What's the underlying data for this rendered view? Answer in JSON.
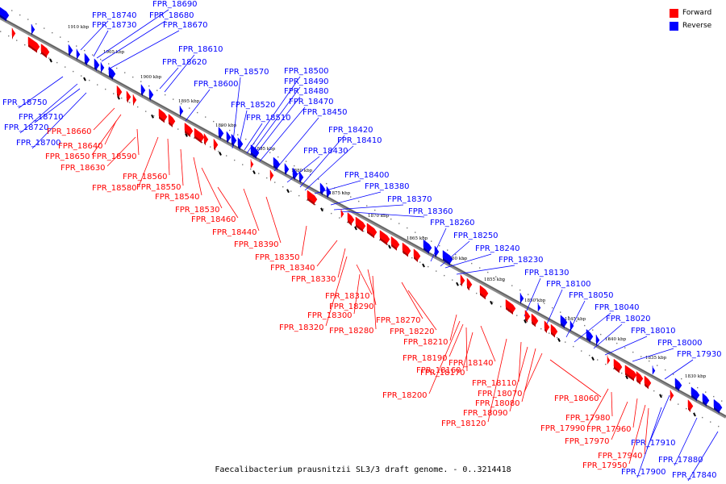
{
  "caption": "Faecalibacterium prausnitzii SL3/3 draft genome. - 0..3214418",
  "legend": {
    "forward_label": "Forward",
    "reverse_label": "Reverse",
    "forward_color": "#ff0000",
    "reverse_color": "#0000ff"
  },
  "scale_labels": [
    "1910 kbp",
    "1905 kbp",
    "1900 kbp",
    "1895 kbp",
    "1890 kbp",
    "1885 kbp",
    "1880 kbp",
    "1875 kbp",
    "1870 kbp",
    "1865 kbp",
    "1860 kbp",
    "1855 kbp",
    "1850 kbp",
    "1845 kbp",
    "1840 kbp",
    "1835 kbp",
    "1830 kbp"
  ],
  "reverse_genes": [
    "FPR_18750",
    "FPR_18740",
    "FPR_18730",
    "FPR_18720",
    "FPR_18710",
    "FPR_18700",
    "FPR_18690",
    "FPR_18680",
    "FPR_18670",
    "FPR_18620",
    "FPR_18610",
    "FPR_18600",
    "FPR_18570",
    "FPR_18520",
    "FPR_18510",
    "FPR_18500",
    "FPR_18490",
    "FPR_18480",
    "FPR_18470",
    "FPR_18450",
    "FPR_18430",
    "FPR_18420",
    "FPR_18410",
    "FPR_18400",
    "FPR_18380",
    "FPR_18370",
    "FPR_18360",
    "FPR_18260",
    "FPR_18250",
    "FPR_18240",
    "FPR_18230",
    "FPR_18130",
    "FPR_18100",
    "FPR_18050",
    "FPR_18040",
    "FPR_18020",
    "FPR_18010",
    "FPR_18000",
    "FPR_17930",
    "FPR_17910",
    "FPR_17900",
    "FPR_17880",
    "FPR_17840"
  ],
  "forward_genes": [
    "FPR_18660",
    "FPR_18650",
    "FPR_18640",
    "FPR_18630",
    "FPR_18590",
    "FPR_18580",
    "FPR_18560",
    "FPR_18550",
    "FPR_18540",
    "FPR_18530",
    "FPR_18460",
    "FPR_18440",
    "FPR_18390",
    "FPR_18350",
    "FPR_18340",
    "FPR_18330",
    "FPR_18320",
    "FPR_18310",
    "FPR_18300",
    "FPR_18290",
    "FPR_18280",
    "FPR_18270",
    "FPR_18220",
    "FPR_18210",
    "FPR_18200",
    "FPR_18190",
    "FPR_18170",
    "FPR_18160",
    "FPR_18140",
    "FPR_18120",
    "FPR_18110",
    "FPR_18090",
    "FPR_18080",
    "FPR_18070",
    "FPR_18060",
    "FPR_17990",
    "FPR_17980",
    "FPR_17970",
    "FPR_17960",
    "FPR_17950",
    "FPR_17940"
  ]
}
